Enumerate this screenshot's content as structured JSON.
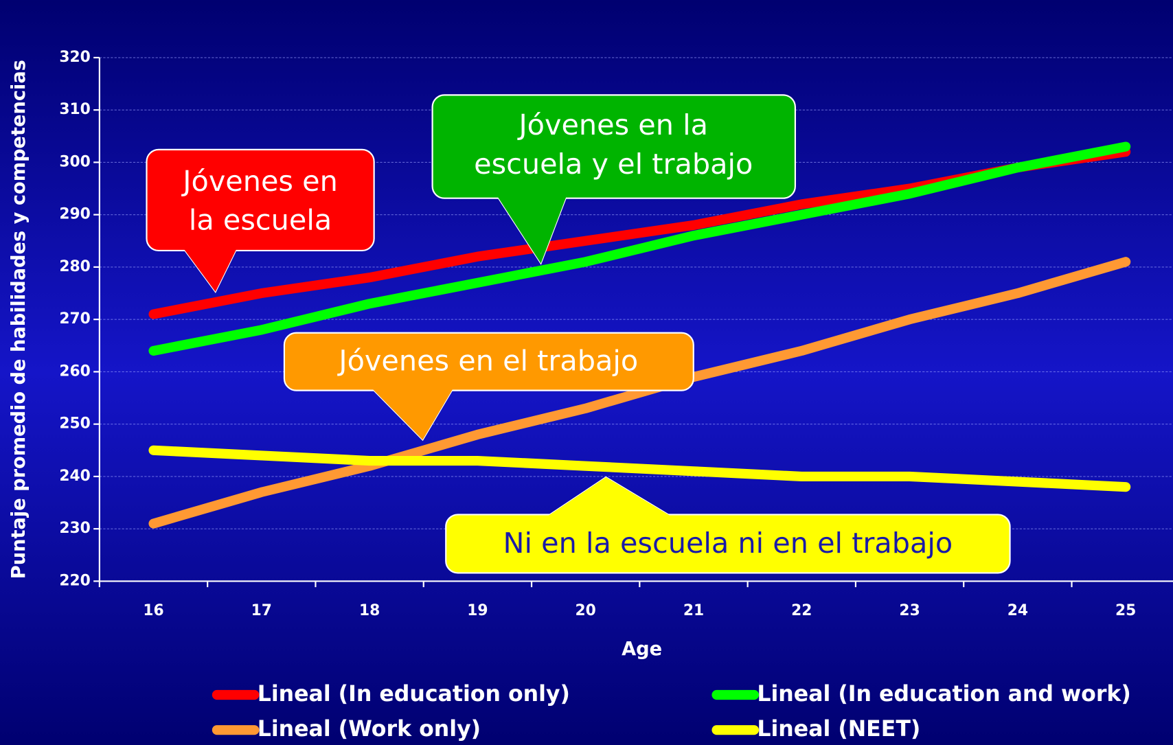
{
  "chart_data": {
    "type": "line",
    "x_label": "Age",
    "y_label": "Puntaje promedio de habilidades y competencias",
    "categories": [
      16,
      17,
      18,
      19,
      20,
      21,
      22,
      23,
      24,
      25
    ],
    "ylim": [
      220,
      320
    ],
    "yticks": [
      220,
      230,
      240,
      250,
      260,
      270,
      280,
      290,
      300,
      310,
      320
    ],
    "grid": true,
    "series": [
      {
        "name": "Lineal (In education only)",
        "color": "#ff0000",
        "values": [
          271,
          275,
          278,
          282,
          285,
          288,
          292,
          295,
          299,
          302
        ]
      },
      {
        "name": "Lineal (In education and work)",
        "color": "#00ff00",
        "values": [
          264,
          268,
          273,
          277,
          281,
          286,
          290,
          294,
          299,
          303
        ]
      },
      {
        "name": "Lineal (Work only)",
        "color": "#ff9933",
        "values": [
          231,
          237,
          242,
          248,
          253,
          259,
          264,
          270,
          275,
          281
        ]
      },
      {
        "name": "Lineal (NEET)",
        "color": "#ffff00",
        "values": [
          245,
          244,
          243,
          243,
          242,
          241,
          240,
          240,
          239,
          238
        ]
      }
    ],
    "annotations": [
      {
        "lines": [
          "Jóvenes en",
          "la escuela"
        ],
        "color": "#ff0000",
        "text_color": "#ffffff"
      },
      {
        "lines": [
          "Jóvenes en la",
          "escuela y el trabajo"
        ],
        "color": "#00b400",
        "text_color": "#ffffff"
      },
      {
        "lines": [
          "Jóvenes en el trabajo"
        ],
        "color": "#ff9900",
        "text_color": "#ffffff"
      },
      {
        "lines": [
          "Ni en la escuela ni en el trabajo"
        ],
        "color": "#ffff00",
        "text_color": "#1a1aa8"
      }
    ]
  }
}
